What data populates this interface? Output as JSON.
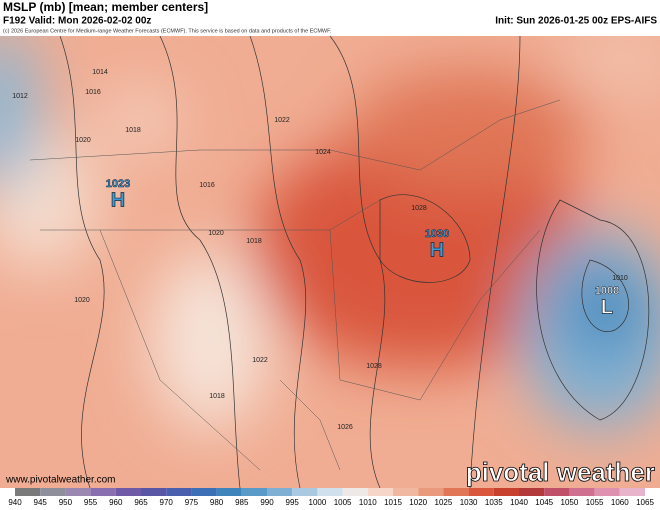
{
  "header": {
    "title": "MSLP (mb) [mean; member centers]",
    "valid": "F192 Valid: Mon 2026-02-02 00z",
    "init": "Init: Sun 2026-01-25 00z EPS-AIFS",
    "copyright": "(c) 2026 European Centre for Medium-range Weather Forecasts (ECMWF). This service is based on data and products of the ECMWF."
  },
  "centers": [
    {
      "label": "H",
      "value": 1023
    },
    {
      "label": "H",
      "value": 1030
    },
    {
      "label": "L",
      "value": 1008
    }
  ],
  "isobar_labels": [
    1014,
    1016,
    1012,
    1018,
    1020,
    1016,
    1020,
    1018,
    1020,
    1022,
    1024,
    1022,
    1018,
    1028,
    1028,
    1026,
    1010
  ],
  "colorbar": {
    "ticks": [
      940,
      945,
      950,
      955,
      960,
      965,
      970,
      975,
      980,
      985,
      990,
      995,
      1000,
      1005,
      1010,
      1015,
      1020,
      1025,
      1030,
      1035,
      1040,
      1045,
      1050,
      1055,
      1060,
      1065
    ]
  },
  "footer": {
    "website": "www.pivotalweather.com",
    "logo": "pivotal weather"
  }
}
